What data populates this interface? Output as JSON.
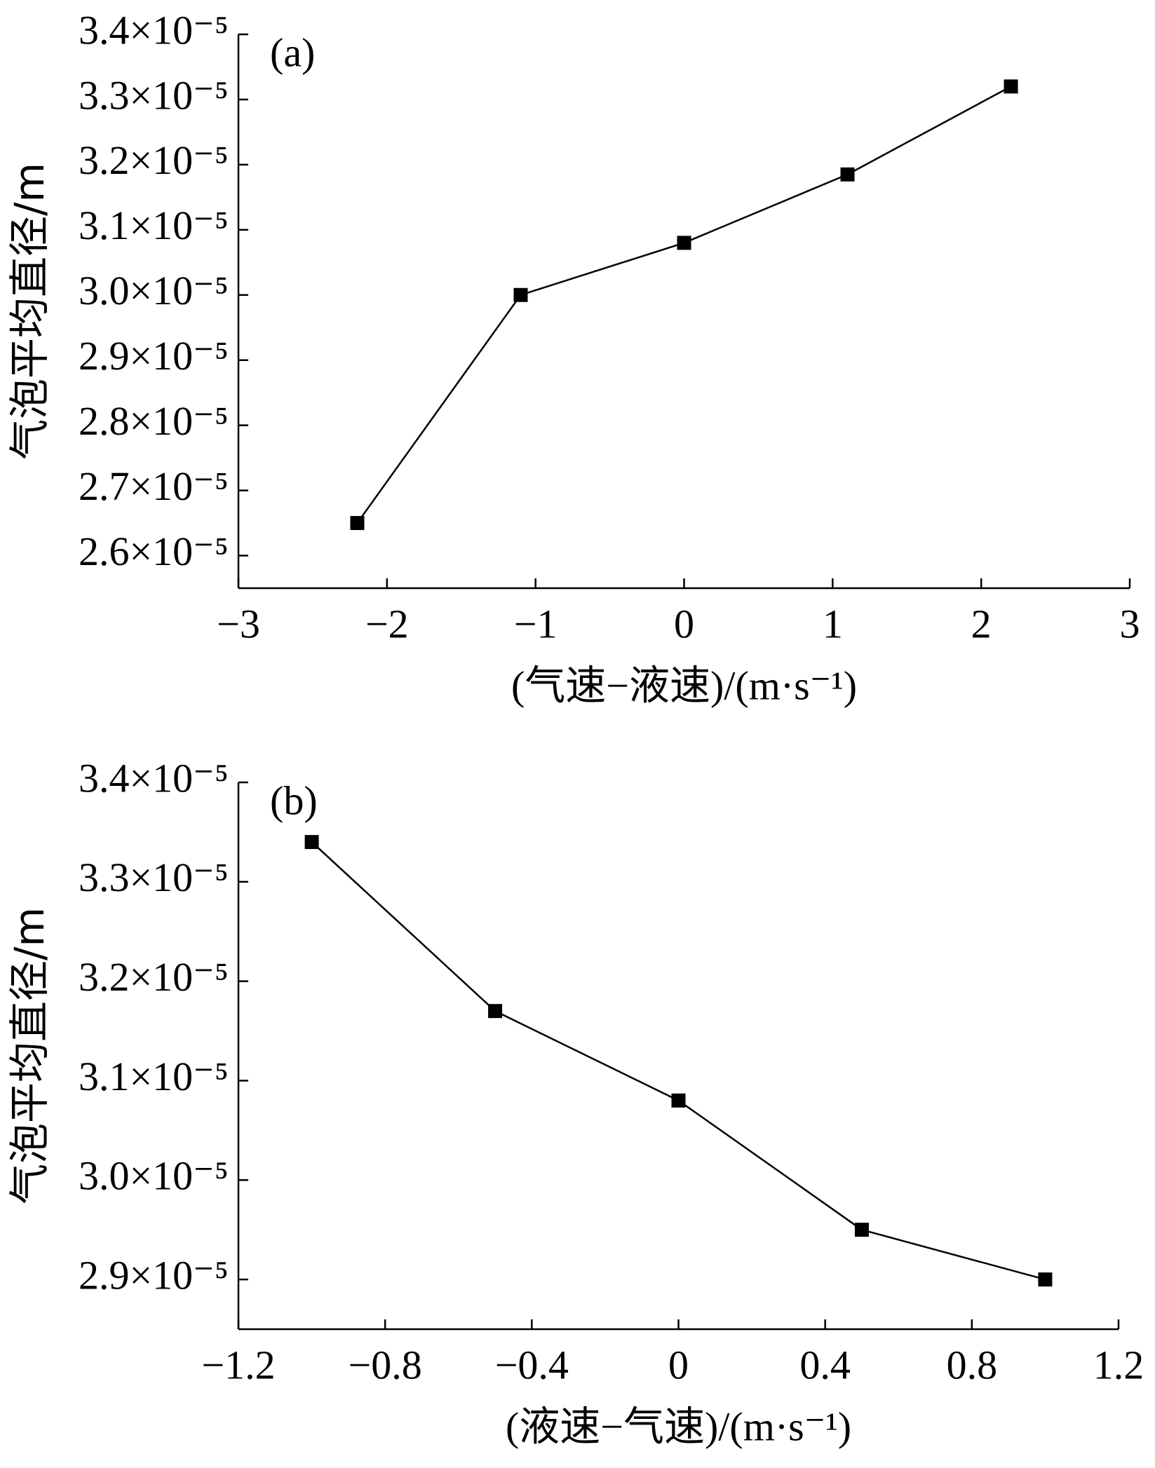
{
  "chart_data": [
    {
      "type": "line",
      "panel_label": "(a)",
      "ylabel": "气泡平均直径/m",
      "xlabel": "(气速−液速)/(m·s⁻¹)",
      "x": [
        -2.2,
        -1.1,
        0,
        1.1,
        2.2
      ],
      "series": [
        {
          "color": "#000000",
          "values": [
            2.65e-05,
            3e-05,
            3.08e-05,
            3.185e-05,
            3.32e-05
          ]
        }
      ],
      "xlim": [
        -3,
        3
      ],
      "xticks": [
        {
          "value": -3,
          "label": "−3"
        },
        {
          "value": -2,
          "label": "−2"
        },
        {
          "value": -1,
          "label": "−1"
        },
        0,
        1,
        2,
        3
      ],
      "ylim": [
        2.55e-05,
        3.4e-05
      ],
      "yticks": [
        {
          "value": 2.6e-05,
          "label": "2.6×10⁻⁵"
        },
        {
          "value": 2.7e-05,
          "label": "2.7×10⁻⁵"
        },
        {
          "value": 2.8e-05,
          "label": "2.8×10⁻⁵"
        },
        {
          "value": 2.9e-05,
          "label": "2.9×10⁻⁵"
        },
        {
          "value": 3e-05,
          "label": "3.0×10⁻⁵"
        },
        {
          "value": 3.1e-05,
          "label": "3.1×10⁻⁵"
        },
        {
          "value": 3.2e-05,
          "label": "3.2×10⁻⁵"
        },
        {
          "value": 3.3e-05,
          "label": "3.3×10⁻⁵"
        },
        {
          "value": 3.4e-05,
          "label": "3.4×10⁻⁵"
        }
      ],
      "grid": false
    },
    {
      "type": "line",
      "panel_label": "(b)",
      "ylabel": "气泡平均直径/m",
      "xlabel": "(液速−气速)/(m·s⁻¹)",
      "x": [
        -1.0,
        -0.5,
        0,
        0.5,
        1.0
      ],
      "series": [
        {
          "color": "#000000",
          "values": [
            3.34e-05,
            3.17e-05,
            3.08e-05,
            2.95e-05,
            2.9e-05
          ]
        }
      ],
      "xlim": [
        -1.2,
        1.2
      ],
      "xticks": [
        {
          "value": -1.2,
          "label": "−1.2"
        },
        {
          "value": -0.8,
          "label": "−0.8"
        },
        {
          "value": -0.4,
          "label": "−0.4"
        },
        0,
        0.4,
        0.8,
        1.2
      ],
      "ylim": [
        2.85e-05,
        3.4e-05
      ],
      "yticks": [
        {
          "value": 2.9e-05,
          "label": "2.9×10⁻⁵"
        },
        {
          "value": 3e-05,
          "label": "3.0×10⁻⁵"
        },
        {
          "value": 3.1e-05,
          "label": "3.1×10⁻⁵"
        },
        {
          "value": 3.2e-05,
          "label": "3.2×10⁻⁵"
        },
        {
          "value": 3.3e-05,
          "label": "3.3×10⁻⁵"
        },
        {
          "value": 3.4e-05,
          "label": "3.4×10⁻⁵"
        }
      ],
      "grid": false
    }
  ]
}
